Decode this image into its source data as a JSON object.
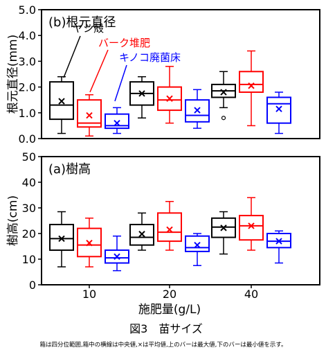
{
  "figure": {
    "xlabel": "施肥量(g/L)",
    "caption": "図3　苗サイズ",
    "note": "箱は四分位範囲,箱中の横線は中央値,×は平均値,上のバーは最大値,下のバーは最小値を示す。"
  },
  "colors": {
    "ヤシ殻": "#000000",
    "バーク堆肥": "#ff0000",
    "キノコ廃菌床": "#0000ff"
  },
  "chart_data": [
    {
      "type": "boxplot",
      "panel": "(b)根元直径",
      "title": "(b)根元直径",
      "ylabel": "根元直径(mm)",
      "ylim": [
        0,
        5
      ],
      "yticks": [
        "0.0",
        "1.0",
        "2.0",
        "3.0",
        "4.0",
        "5.0"
      ],
      "categories": [
        "10",
        "20",
        "40"
      ],
      "legend": [
        "ヤシ殻",
        "バーク堆肥",
        "キノコ廃菌床"
      ],
      "series": [
        {
          "name": "ヤシ殻",
          "color": "#000000",
          "boxes": [
            {
              "min": 0.2,
              "q1": 0.75,
              "median": 1.3,
              "q3": 2.2,
              "max": 2.4,
              "mean": 1.45
            },
            {
              "min": 0.8,
              "q1": 1.3,
              "median": 1.75,
              "q3": 2.2,
              "max": 2.4,
              "mean": 1.75
            },
            {
              "min": 1.2,
              "q1": 1.6,
              "median": 1.85,
              "q3": 2.1,
              "max": 2.6,
              "mean": 1.8,
              "outliers": [
                0.8
              ]
            }
          ]
        },
        {
          "name": "バーク堆肥",
          "color": "#ff0000",
          "boxes": [
            {
              "min": 0.1,
              "q1": 0.45,
              "median": 0.6,
              "q3": 1.5,
              "max": 1.7,
              "mean": 0.9
            },
            {
              "min": 0.6,
              "q1": 1.1,
              "median": 1.5,
              "q3": 2.0,
              "max": 2.8,
              "mean": 1.55
            },
            {
              "min": 0.5,
              "q1": 1.8,
              "median": 2.1,
              "q3": 2.6,
              "max": 3.4,
              "mean": 2.05
            }
          ]
        },
        {
          "name": "キノコ廃菌床",
          "color": "#0000ff",
          "boxes": [
            {
              "min": 0.2,
              "q1": 0.4,
              "median": 0.5,
              "q3": 0.95,
              "max": 1.2,
              "mean": 0.6
            },
            {
              "min": 0.4,
              "q1": 0.65,
              "median": 0.9,
              "q3": 1.5,
              "max": 1.9,
              "mean": 1.1
            },
            {
              "min": 0.2,
              "q1": 0.6,
              "median": 1.35,
              "q3": 1.6,
              "max": 1.8,
              "mean": 1.15
            }
          ]
        }
      ]
    },
    {
      "type": "boxplot",
      "panel": "(a)樹高",
      "title": "(a)樹高",
      "ylabel": "樹高(cm)",
      "ylim": [
        0,
        50
      ],
      "yticks": [
        "0",
        "10",
        "20",
        "30",
        "40",
        "50"
      ],
      "categories": [
        "10",
        "20",
        "40"
      ],
      "series": [
        {
          "name": "ヤシ殻",
          "color": "#000000",
          "boxes": [
            {
              "min": 7.0,
              "q1": 13.5,
              "median": 18.0,
              "q3": 23.5,
              "max": 28.5,
              "mean": 18.0
            },
            {
              "min": 13.5,
              "q1": 15.5,
              "median": 18.5,
              "q3": 23.5,
              "max": 28.0,
              "mean": 19.8
            },
            {
              "min": 12.0,
              "q1": 18.5,
              "median": 22.5,
              "q3": 26.0,
              "max": 28.5,
              "mean": 22.2
            }
          ]
        },
        {
          "name": "バーク堆肥",
          "color": "#ff0000",
          "boxes": [
            {
              "min": 7.0,
              "q1": 11.0,
              "median": 15.5,
              "q3": 22.0,
              "max": 26.0,
              "mean": 16.3
            },
            {
              "min": 13.5,
              "q1": 17.0,
              "median": 20.5,
              "q3": 28.0,
              "max": 32.5,
              "mean": 21.5
            },
            {
              "min": 13.5,
              "q1": 17.5,
              "median": 23.0,
              "q3": 27.0,
              "max": 34.0,
              "mean": 23.0
            }
          ]
        },
        {
          "name": "キノコ廃菌床",
          "color": "#0000ff",
          "boxes": [
            {
              "min": 5.5,
              "q1": 8.5,
              "median": 10.5,
              "q3": 13.5,
              "max": 19.0,
              "mean": 11.0
            },
            {
              "min": 7.5,
              "q1": 13.0,
              "median": 14.5,
              "q3": 19.0,
              "max": 20.0,
              "mean": 15.5
            },
            {
              "min": 8.5,
              "q1": 14.5,
              "median": 17.0,
              "q3": 20.0,
              "max": 21.0,
              "mean": 17.0
            }
          ]
        }
      ]
    }
  ]
}
